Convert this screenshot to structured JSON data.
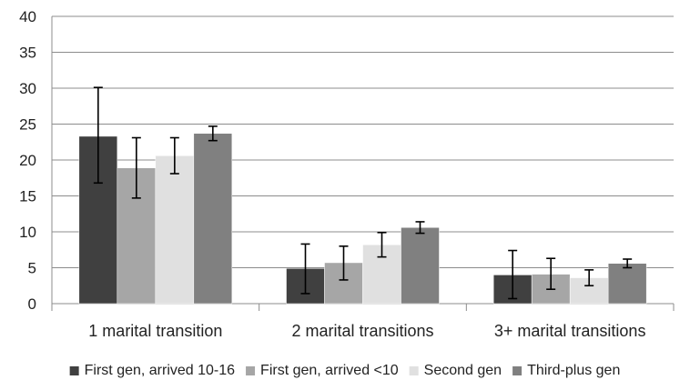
{
  "chart_data": {
    "type": "bar",
    "title": "",
    "xlabel": "",
    "ylabel": "",
    "ylim": [
      0,
      40
    ],
    "yticks": [
      0,
      5,
      10,
      15,
      20,
      25,
      30,
      35,
      40
    ],
    "grid": true,
    "legend_position": "bottom",
    "categories": [
      "1 marital transition",
      "2 marital transitions",
      "3+ marital transitions"
    ],
    "series": [
      {
        "name": "First gen, arrived 10-16",
        "color": "#404040",
        "values": [
          23.3,
          4.9,
          4.0
        ],
        "error_low": [
          16.8,
          1.4,
          0.7
        ],
        "error_high": [
          30.1,
          8.3,
          7.4
        ]
      },
      {
        "name": "First gen, arrived <10",
        "color": "#a6a6a6",
        "values": [
          18.9,
          5.7,
          4.1
        ],
        "error_low": [
          14.7,
          3.3,
          2.0
        ],
        "error_high": [
          23.1,
          8.0,
          6.3
        ]
      },
      {
        "name": "Second gen",
        "color": "#e0e0e0",
        "values": [
          20.6,
          8.2,
          3.6
        ],
        "error_low": [
          18.1,
          6.5,
          2.5
        ],
        "error_high": [
          23.1,
          9.9,
          4.7
        ]
      },
      {
        "name": "Third-plus gen",
        "color": "#808080",
        "values": [
          23.7,
          10.6,
          5.6
        ],
        "error_low": [
          22.7,
          9.8,
          5.0
        ],
        "error_high": [
          24.7,
          11.4,
          6.2
        ]
      }
    ]
  }
}
